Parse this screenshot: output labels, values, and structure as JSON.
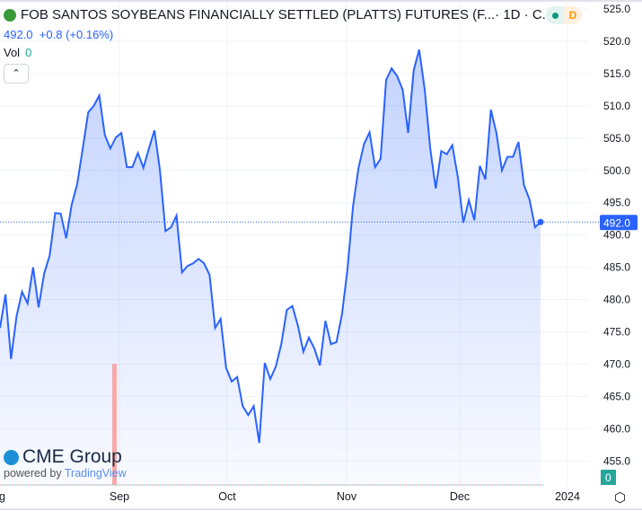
{
  "header": {
    "title": "FOB SANTOS SOYBEANS FINANCIALLY SETTLED (PLATTS) FUTURES (F...",
    "interval": " · 1D · C...",
    "status_badge": "D"
  },
  "quote": {
    "price": "492.0",
    "change": "+0.8",
    "change_pct": "(+0.16%)"
  },
  "volume": {
    "label": "Vol",
    "value": "0"
  },
  "branding": {
    "logo": "CME Group",
    "powered_by": "powered by",
    "tradingview": "TradingView"
  },
  "colors": {
    "line": "#2962ff",
    "fill": "#2962ff",
    "volume_bar": "#f7a9a8",
    "last_badge": "#2962ff",
    "vol_badge": "#26a69a"
  },
  "chart_data": {
    "type": "area",
    "title": "FOB SANTOS SOYBEANS FINANCIALLY SETTLED (PLATTS) FUTURES",
    "ylim": [
      453,
      526
    ],
    "y_ticks": [
      525,
      520,
      515,
      510,
      505,
      500,
      495,
      490,
      485,
      480,
      475,
      470,
      465,
      460,
      455
    ],
    "y_tick_labels": [
      "525.0",
      "520.0",
      "515.0",
      "510.0",
      "505.0",
      "500.0",
      "495.0",
      "490.0",
      "485.0",
      "480.0",
      "475.0",
      "470.0",
      "465.0",
      "460.0",
      "455.0"
    ],
    "x_tick_labels": [
      "g",
      "Sep",
      "Oct",
      "Nov",
      "Dec",
      "2024"
    ],
    "last_price_label": "492.0",
    "volume_label": "0",
    "values": [
      475.6,
      480.8,
      470.8,
      477.4,
      481.2,
      479.4,
      485.0,
      478.8,
      484.0,
      486.8,
      493.4,
      493.3,
      489.5,
      494.7,
      497.9,
      503.4,
      509.0,
      510.0,
      511.6,
      505.5,
      503.4,
      505.1,
      505.8,
      500.5,
      500.5,
      502.7,
      500.4,
      503.4,
      506.2,
      500.0,
      490.6,
      491.2,
      493.0,
      484.2,
      485.2,
      485.6,
      486.3,
      485.6,
      483.8,
      475.6,
      477.0,
      469.4,
      467.3,
      468.0,
      463.5,
      462.1,
      463.5,
      457.8,
      470.2,
      467.7,
      469.6,
      473.1,
      478.4,
      479.0,
      476.0,
      471.9,
      474.1,
      472.4,
      469.8,
      476.7,
      473.1,
      473.4,
      477.7,
      484.7,
      494.4,
      500.4,
      504.1,
      505.9,
      500.5,
      501.8,
      514.0,
      515.8,
      514.6,
      512.5,
      505.8,
      515.5,
      518.7,
      512.5,
      503.4,
      497.2,
      503.0,
      502.5,
      503.9,
      499.0,
      491.9,
      495.4,
      492.3,
      500.7,
      498.6,
      509.4,
      505.8,
      500.0,
      502.1,
      502.1,
      504.4,
      497.7,
      495.5,
      491.2,
      492.0
    ]
  }
}
